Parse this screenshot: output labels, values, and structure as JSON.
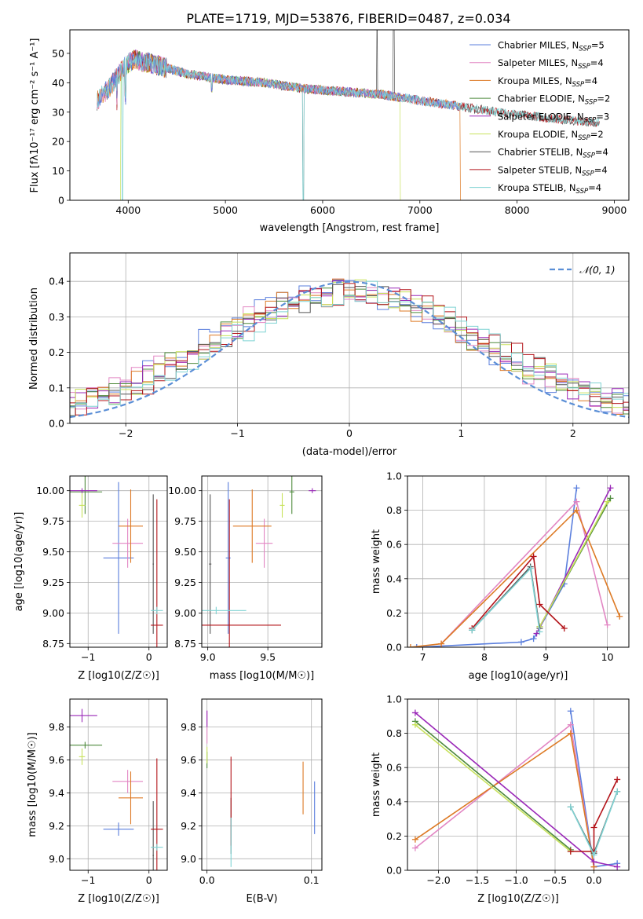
{
  "figure": {
    "title": "PLATE=1719, MJD=53876, FIBERID=0487, z=0.034"
  },
  "colors": {
    "Chabrier MILES": "#5b7fdd",
    "Salpeter MILES": "#e286c3",
    "Kroupa MILES": "#dd7a25",
    "Chabrier ELODIE": "#4e8a3c",
    "Salpeter ELODIE": "#9a28b8",
    "Kroupa ELODIE": "#c8e25c",
    "Chabrier STELIB": "#555555",
    "Salpeter STELIB": "#b3141a",
    "Kroupa STELIB": "#7fd3d3"
  },
  "chart_data": [
    {
      "id": "spectrum",
      "type": "line",
      "xlabel": "wavelength [Angstrom, rest frame]",
      "ylabel": "Flux [f_λ 10^-17 erg cm^-2 s^-1 A^-1]",
      "xlim": [
        3400,
        9150
      ],
      "ylim": [
        0,
        58
      ],
      "xticks": [
        4000,
        5000,
        6000,
        7000,
        8000,
        9000
      ],
      "yticks": [
        0,
        10,
        20,
        30,
        40,
        50
      ],
      "grid": false,
      "legend_position": "top-right",
      "legend": [
        "Chabrier MILES, N_SSP=5",
        "Salpeter MILES, N_SSP=4",
        "Kroupa MILES, N_SSP=4",
        "Chabrier ELODIE, N_SSP=2",
        "Salpeter ELODIE, N_SSP=3",
        "Kroupa ELODIE, N_SSP=2",
        "Chabrier STELIB, N_SSP=4",
        "Salpeter STELIB, N_SSP=4",
        "Kroupa STELIB, N_SSP=4"
      ],
      "continuum": {
        "x": [
          3680,
          3800,
          3950,
          4050,
          4300,
          4600,
          5000,
          5400,
          5800,
          6200,
          6600,
          7000,
          7400,
          7800,
          8200,
          8600,
          8850
        ],
        "y": [
          34,
          38,
          45,
          48,
          46,
          43,
          41,
          40,
          38,
          37,
          36,
          34,
          32,
          30,
          28.5,
          27,
          26.5
        ]
      },
      "features": {
        "Chabrier MILES": {
          "range": [
            3680,
            7420
          ],
          "drops": []
        },
        "Salpeter MILES": {
          "range": [
            3680,
            7420
          ],
          "drops": []
        },
        "Kroupa MILES": {
          "range": [
            3680,
            7420
          ],
          "drops": [
            7420
          ]
        },
        "Chabrier ELODIE": {
          "range": [
            3900,
            6800
          ],
          "drops": []
        },
        "Salpeter ELODIE": {
          "range": [
            4000,
            6800
          ],
          "drops": []
        },
        "Kroupa ELODIE": {
          "range": [
            3920,
            6800
          ],
          "drops": [
            3920,
            6800
          ]
        },
        "Chabrier STELIB": {
          "range": [
            3680,
            8850
          ],
          "drops": [
            5800
          ],
          "spikes": [
            6560,
            6730
          ]
        },
        "Salpeter STELIB": {
          "range": [
            3680,
            8850
          ],
          "drops": []
        },
        "Kroupa STELIB": {
          "range": [
            3680,
            8850
          ],
          "drops": [
            3940,
            5800
          ]
        }
      }
    },
    {
      "id": "residuals",
      "type": "line",
      "xlabel": "(data-model)/error",
      "ylabel": "Normed distribution",
      "xlim": [
        -2.5,
        2.5
      ],
      "ylim": [
        0,
        0.48
      ],
      "xticks": [
        -2,
        -1,
        0,
        1,
        2
      ],
      "yticks": [
        0.0,
        0.1,
        0.2,
        0.3,
        0.4
      ],
      "grid": true,
      "legend_position": "top-right",
      "legend": [
        "N(0,1)"
      ],
      "reference": {
        "name": "N(0,1)",
        "color": "#5b8fd6",
        "style": "dashed"
      }
    },
    {
      "id": "age-vs-Z",
      "type": "scatter",
      "xlabel": "Z [log10(Z/Z☉)]",
      "ylabel": "age  [log10(age/yr)]",
      "xlim": [
        -1.3,
        0.3
      ],
      "ylim": [
        8.72,
        10.12
      ],
      "xticks": [
        -1,
        0
      ],
      "yticks": [
        8.75,
        9.0,
        9.25,
        9.5,
        9.75,
        10.0
      ],
      "grid": true,
      "points": [
        {
          "model": "Chabrier MILES",
          "x": -0.5,
          "y": 9.45,
          "xerr": 0.25,
          "yerr": 0.62
        },
        {
          "model": "Salpeter MILES",
          "x": -0.35,
          "y": 9.57,
          "xerr": 0.25,
          "yerr": 0.2
        },
        {
          "model": "Kroupa MILES",
          "x": -0.3,
          "y": 9.71,
          "xerr": 0.2,
          "yerr": 0.3
        },
        {
          "model": "Chabrier ELODIE",
          "x": -1.05,
          "y": 9.99,
          "xerr": 0.28,
          "yerr": 0.18
        },
        {
          "model": "Salpeter ELODIE",
          "x": -1.1,
          "y": 10.0,
          "xerr": 0.25,
          "yerr": 0.02
        },
        {
          "model": "Kroupa ELODIE",
          "x": -1.1,
          "y": 9.88,
          "xerr": 0.05,
          "yerr": 0.1
        },
        {
          "model": "Chabrier STELIB",
          "x": 0.07,
          "y": 9.4,
          "xerr": 0.01,
          "yerr": 0.57
        },
        {
          "model": "Salpeter STELIB",
          "x": 0.13,
          "y": 8.9,
          "xerr": 0.1,
          "yerr": 1.03
        },
        {
          "model": "Kroupa STELIB",
          "x": 0.13,
          "y": 9.02,
          "xerr": 0.1,
          "yerr": 0.03
        }
      ]
    },
    {
      "id": "age-vs-mass",
      "type": "scatter",
      "xlabel": "mass [log10(M/M☉)]",
      "ylabel": "",
      "xlim": [
        8.95,
        9.95
      ],
      "ylim": [
        8.72,
        10.12
      ],
      "xticks": [
        9.0,
        9.5
      ],
      "yticks": [
        8.75,
        9.0,
        9.25,
        9.5,
        9.75,
        10.0
      ],
      "grid": true,
      "points": [
        {
          "model": "Chabrier MILES",
          "x": 9.17,
          "y": 9.45,
          "xerr": 0.02,
          "yerr": 0.62
        },
        {
          "model": "Salpeter MILES",
          "x": 9.47,
          "y": 9.57,
          "xerr": 0.07,
          "yerr": 0.2
        },
        {
          "model": "Kroupa MILES",
          "x": 9.37,
          "y": 9.71,
          "xerr": 0.16,
          "yerr": 0.3
        },
        {
          "model": "Chabrier ELODIE",
          "x": 9.7,
          "y": 9.99,
          "xerr": 0.02,
          "yerr": 0.18
        },
        {
          "model": "Salpeter ELODIE",
          "x": 9.87,
          "y": 10.0,
          "xerr": 0.03,
          "yerr": 0.02
        },
        {
          "model": "Kroupa ELODIE",
          "x": 9.62,
          "y": 9.88,
          "xerr": 0.02,
          "yerr": 0.1
        },
        {
          "model": "Chabrier STELIB",
          "x": 9.02,
          "y": 9.4,
          "xerr": 0.01,
          "yerr": 0.57
        },
        {
          "model": "Salpeter STELIB",
          "x": 9.18,
          "y": 8.9,
          "xerr": 0.43,
          "yerr": 1.03
        },
        {
          "model": "Kroupa STELIB",
          "x": 9.07,
          "y": 9.02,
          "xerr": 0.25,
          "yerr": 0.03
        }
      ]
    },
    {
      "id": "massweight-vs-age",
      "type": "line",
      "xlabel": "age  [log10(age/yr)]",
      "ylabel": "mass weight",
      "xlim": [
        6.75,
        10.35
      ],
      "ylim": [
        0,
        1.0
      ],
      "xticks": [
        7,
        8,
        9,
        10
      ],
      "yticks": [
        0.0,
        0.2,
        0.4,
        0.6,
        0.8,
        1.0
      ],
      "grid": true,
      "series": [
        {
          "model": "Chabrier MILES",
          "x": [
            6.9,
            8.6,
            8.8,
            9.3,
            9.5
          ],
          "y": [
            0.0,
            0.03,
            0.05,
            0.37,
            0.93
          ]
        },
        {
          "model": "Salpeter MILES",
          "x": [
            7.3,
            9.5,
            10.0
          ],
          "y": [
            0.02,
            0.85,
            0.13
          ]
        },
        {
          "model": "Kroupa MILES",
          "x": [
            6.8,
            7.3,
            9.5,
            10.2
          ],
          "y": [
            0.0,
            0.02,
            0.8,
            0.18
          ]
        },
        {
          "model": "Chabrier ELODIE",
          "x": [
            8.9,
            10.05
          ],
          "y": [
            0.12,
            0.87
          ]
        },
        {
          "model": "Salpeter ELODIE",
          "x": [
            8.85,
            10.05
          ],
          "y": [
            0.08,
            0.93
          ]
        },
        {
          "model": "Kroupa ELODIE",
          "x": [
            8.9,
            10.0
          ],
          "y": [
            0.12,
            0.85
          ]
        },
        {
          "model": "Chabrier STELIB",
          "x": [
            7.8,
            8.75,
            8.9
          ],
          "y": [
            0.1,
            0.47,
            0.11
          ]
        },
        {
          "model": "Salpeter STELIB",
          "x": [
            7.8,
            8.8,
            8.9,
            9.3
          ],
          "y": [
            0.11,
            0.53,
            0.25,
            0.11
          ]
        },
        {
          "model": "Kroupa STELIB",
          "x": [
            7.8,
            8.75,
            8.9
          ],
          "y": [
            0.1,
            0.46,
            0.09
          ]
        }
      ]
    },
    {
      "id": "mass-vs-Z",
      "type": "scatter",
      "xlabel": "Z [log10(Z/Z☉)]",
      "ylabel": "mass [log10(M/M☉)]",
      "xlim": [
        -1.3,
        0.3
      ],
      "ylim": [
        8.93,
        9.97
      ],
      "xticks": [
        -1,
        0
      ],
      "yticks": [
        9.0,
        9.2,
        9.4,
        9.6,
        9.8
      ],
      "grid": true,
      "points": [
        {
          "model": "Chabrier MILES",
          "x": -0.5,
          "y": 9.18,
          "xerr": 0.25,
          "yerr": 0.04
        },
        {
          "model": "Salpeter MILES",
          "x": -0.35,
          "y": 9.47,
          "xerr": 0.25,
          "yerr": 0.07
        },
        {
          "model": "Kroupa MILES",
          "x": -0.3,
          "y": 9.37,
          "xerr": 0.2,
          "yerr": 0.16
        },
        {
          "model": "Chabrier ELODIE",
          "x": -1.05,
          "y": 9.69,
          "xerr": 0.28,
          "yerr": 0.02
        },
        {
          "model": "Salpeter ELODIE",
          "x": -1.1,
          "y": 9.87,
          "xerr": 0.25,
          "yerr": 0.04
        },
        {
          "model": "Kroupa ELODIE",
          "x": -1.1,
          "y": 9.62,
          "xerr": 0.05,
          "yerr": 0.05
        },
        {
          "model": "Chabrier STELIB",
          "x": 0.07,
          "y": 9.02,
          "xerr": 0.01,
          "yerr": 0.33
        },
        {
          "model": "Salpeter STELIB",
          "x": 0.13,
          "y": 9.18,
          "xerr": 0.1,
          "yerr": 0.43
        },
        {
          "model": "Kroupa STELIB",
          "x": 0.13,
          "y": 9.07,
          "xerr": 0.1,
          "yerr": 0.02
        }
      ]
    },
    {
      "id": "mass-vs-EBV",
      "type": "scatter",
      "xlabel": "E(B-V)",
      "ylabel": "",
      "xlim": [
        -0.005,
        0.11
      ],
      "ylim": [
        8.93,
        9.97
      ],
      "xticks": [
        0.0,
        0.1
      ],
      "yticks": [
        9.0,
        9.2,
        9.4,
        9.6,
        9.8
      ],
      "grid": true,
      "points": [
        {
          "model": "Chabrier MILES",
          "x": 0.103,
          "y": 9.31,
          "xerr": 0,
          "yerr": 0.16
        },
        {
          "model": "Salpeter MILES",
          "x": 0.0,
          "y": 9.8,
          "xerr": 0,
          "yerr": 0.1
        },
        {
          "model": "Kroupa MILES",
          "x": 0.092,
          "y": 9.43,
          "xerr": 0,
          "yerr": 0.16
        },
        {
          "model": "Chabrier ELODIE",
          "x": 0.0,
          "y": 9.6,
          "xerr": 0,
          "yerr": 0.05
        },
        {
          "model": "Salpeter ELODIE",
          "x": 0.0,
          "y": 9.85,
          "xerr": 0,
          "yerr": 0.05
        },
        {
          "model": "Kroupa ELODIE",
          "x": 0.0,
          "y": 9.63,
          "xerr": 0,
          "yerr": 0.05
        },
        {
          "model": "Chabrier STELIB",
          "x": 0.023,
          "y": 9.2,
          "xerr": 0,
          "yerr": 0.17
        },
        {
          "model": "Salpeter STELIB",
          "x": 0.023,
          "y": 9.35,
          "xerr": 0,
          "yerr": 0.27
        },
        {
          "model": "Kroupa STELIB",
          "x": 0.023,
          "y": 9.1,
          "xerr": 0,
          "yerr": 0.15
        }
      ]
    },
    {
      "id": "massweight-vs-Z",
      "type": "line",
      "xlabel": "Z [log10(Z/Z☉)]",
      "ylabel": "mass weight",
      "xlim": [
        -2.4,
        0.45
      ],
      "ylim": [
        0,
        1.0
      ],
      "xticks": [
        -2.0,
        -1.5,
        -1.0,
        -0.5,
        0.0
      ],
      "yticks": [
        0.0,
        0.2,
        0.4,
        0.6,
        0.8,
        1.0
      ],
      "grid": true,
      "series": [
        {
          "model": "Chabrier MILES",
          "x": [
            -0.3,
            0.0,
            0.3
          ],
          "y": [
            0.93,
            0.02,
            0.04
          ]
        },
        {
          "model": "Salpeter MILES",
          "x": [
            -2.3,
            -0.3,
            0.0
          ],
          "y": [
            0.13,
            0.85,
            0.02
          ]
        },
        {
          "model": "Kroupa MILES",
          "x": [
            -2.3,
            -0.3,
            0.0
          ],
          "y": [
            0.18,
            0.8,
            0.02
          ]
        },
        {
          "model": "Chabrier ELODIE",
          "x": [
            -2.3,
            -0.3
          ],
          "y": [
            0.87,
            0.12
          ]
        },
        {
          "model": "Salpeter ELODIE",
          "x": [
            -2.3,
            0.0,
            0.3
          ],
          "y": [
            0.92,
            0.05,
            0.02
          ]
        },
        {
          "model": "Kroupa ELODIE",
          "x": [
            -2.3,
            -0.3
          ],
          "y": [
            0.85,
            0.11
          ]
        },
        {
          "model": "Chabrier STELIB",
          "x": [
            -0.3,
            0.0,
            0.3
          ],
          "y": [
            0.37,
            0.1,
            0.46
          ]
        },
        {
          "model": "Salpeter STELIB",
          "x": [
            -0.3,
            0.0,
            0.0,
            0.3
          ],
          "y": [
            0.11,
            0.11,
            0.25,
            0.53
          ]
        },
        {
          "model": "Kroupa STELIB",
          "x": [
            -0.3,
            0.0,
            0.3
          ],
          "y": [
            0.37,
            0.09,
            0.46
          ]
        }
      ]
    }
  ]
}
